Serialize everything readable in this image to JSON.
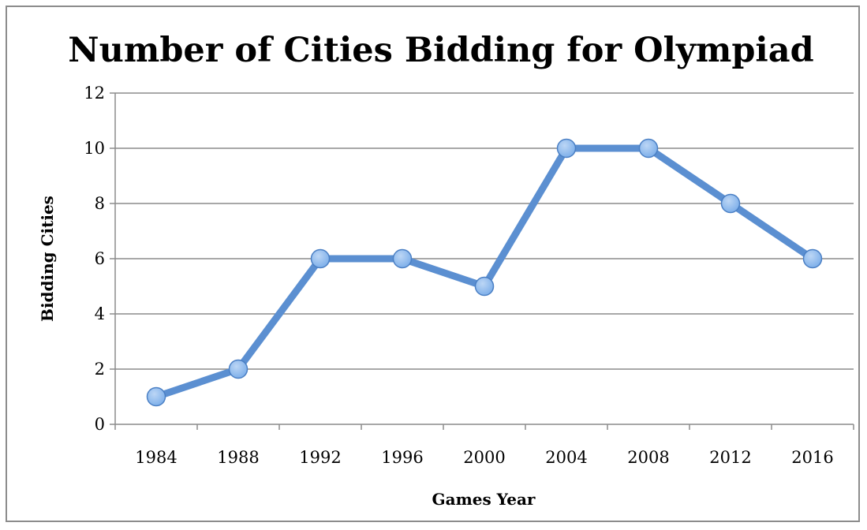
{
  "chart_data": {
    "type": "line",
    "title": "Number of Cities Bidding for Olympiad",
    "xlabel": "Games Year",
    "ylabel": "Bidding Cities",
    "categories": [
      "1984",
      "1988",
      "1992",
      "1996",
      "2000",
      "2004",
      "2008",
      "2012",
      "2016"
    ],
    "values": [
      1,
      2,
      6,
      6,
      5,
      10,
      10,
      8,
      6
    ],
    "ylim": [
      0,
      12
    ],
    "yticks": [
      "0",
      "2",
      "4",
      "6",
      "8",
      "10",
      "12"
    ],
    "grid": true,
    "legend": "none",
    "colors": {
      "line": "#5b8fd1",
      "marker_fill": "#7fb0ea",
      "marker_stroke": "#4a7fc4",
      "grid": "#8c8c8c",
      "frame": "#8c8c8c"
    }
  }
}
